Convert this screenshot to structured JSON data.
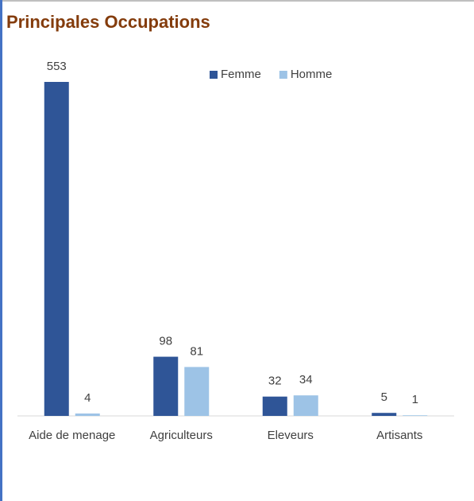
{
  "chart_data": {
    "type": "bar",
    "title": "Principales Occupations",
    "categories": [
      "Aide de menage",
      "Agriculteurs",
      "Eleveurs",
      "Artisants"
    ],
    "series": [
      {
        "name": "Femme",
        "color": "#2f5597",
        "values": [
          553,
          98,
          32,
          5
        ]
      },
      {
        "name": "Homme",
        "color": "#9dc3e6",
        "values": [
          4,
          81,
          34,
          1
        ]
      }
    ]
  }
}
